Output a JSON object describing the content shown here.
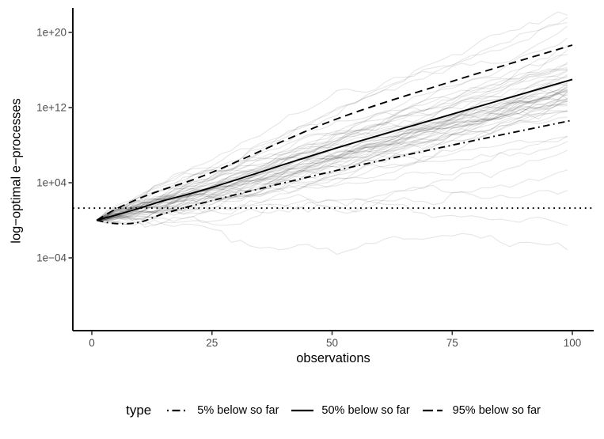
{
  "chart_data": {
    "type": "line",
    "title": "",
    "xlabel": "observations",
    "ylabel": "log−optimal e−processes",
    "x_scale": "linear",
    "y_scale": "log10",
    "grid": false,
    "x_ticks": [
      0,
      25,
      50,
      75,
      100
    ],
    "y_ticks": [
      {
        "label": "1e+20",
        "log10": 20
      },
      {
        "label": "1e+12",
        "log10": 12
      },
      {
        "label": "1e+04",
        "log10": 4
      },
      {
        "label": "1e−04",
        "log10": -4
      }
    ],
    "x_range": [
      0,
      100
    ],
    "threshold": {
      "style": "dotted",
      "value": 20,
      "log10": 1.301
    },
    "series": [
      {
        "name": "5% below so far",
        "style": "dashdot",
        "x": [
          1,
          5,
          10,
          15,
          25,
          50,
          75,
          100
        ],
        "log10_y": [
          0,
          -0.35,
          -0.2,
          0.7,
          2.1,
          5.2,
          8.0,
          10.65
        ]
      },
      {
        "name": "50% below so far",
        "style": "solid",
        "x": [
          1,
          5,
          10,
          15,
          25,
          50,
          75,
          100
        ],
        "log10_y": [
          0,
          0.55,
          1.3,
          2.1,
          3.5,
          7.55,
          11.3,
          15.0
        ]
      },
      {
        "name": "95% below so far",
        "style": "dashed",
        "x": [
          1,
          5,
          10,
          15,
          25,
          50,
          75,
          100
        ],
        "log10_y": [
          0,
          1.2,
          2.35,
          3.3,
          5.1,
          10.6,
          14.8,
          18.65
        ]
      }
    ],
    "ensemble": {
      "description": "translucent sample paths of log-optimal e-processes",
      "n_paths": 300,
      "n_obs": 100,
      "obs_step": 2,
      "start_log10": 0,
      "drift_log10_mean": 0.149,
      "drift_log10_sd": 0.017,
      "laggard_fraction": 0.07,
      "laggard_drift_mean": 0.05,
      "laggard_drift_sd": 0.055,
      "step_noise_log10_sd": 0.2,
      "color": "#000000",
      "base_opacity": 0.018,
      "opacity_jitter": 0.04
    },
    "legend": {
      "title": "type",
      "position": "bottom",
      "items": [
        {
          "label": "5% below so far",
          "linetype": "dashdot"
        },
        {
          "label": "50% below so far",
          "linetype": "solid"
        },
        {
          "label": "95% below so far",
          "linetype": "dashed"
        }
      ]
    },
    "colors": {
      "line": "#000000",
      "tick_label": "#4d4d4d",
      "axis": "#000000",
      "background": "#ffffff"
    }
  }
}
